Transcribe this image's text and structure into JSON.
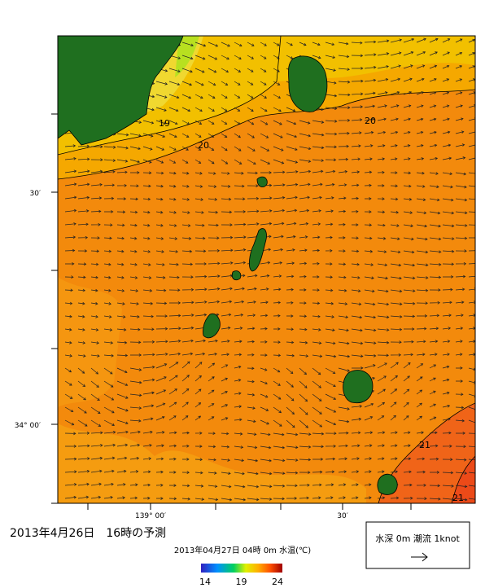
{
  "map": {
    "axis_labels": {
      "lat": [
        "30′",
        "34° 00′"
      ],
      "lon": [
        "139° 00′",
        "30′"
      ]
    },
    "contour_labels": [
      "19",
      "20",
      "20",
      "21",
      "21"
    ]
  },
  "title": "2013年4月26日　16時の予測",
  "subtitle": "2013年04月27日 04時 0m 水温(℃)",
  "colorbar": {
    "ticks": [
      14,
      19,
      24
    ]
  },
  "legend": "水深 0m 潮流 1knot"
}
